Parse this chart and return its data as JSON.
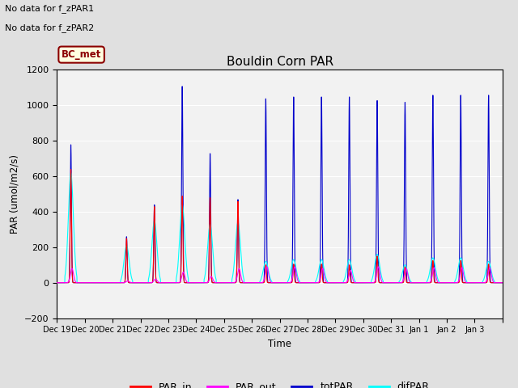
{
  "title": "Bouldin Corn PAR",
  "ylabel": "PAR (umol/m2/s)",
  "xlabel": "Time",
  "ylim": [
    -200,
    1200
  ],
  "yticks": [
    -200,
    0,
    200,
    400,
    600,
    800,
    1000,
    1200
  ],
  "annotation1": "No data for f_zPAR1",
  "annotation2": "No data for f_zPAR2",
  "legend_label": "BC_met",
  "line_colors": {
    "PAR_in": "#ff0000",
    "PAR_out": "#ff00ff",
    "totPAR": "#0000cc",
    "difPAR": "#00ffff"
  },
  "bg_color": "#e0e0e0",
  "plot_bg": "#f2f2f2",
  "n_days": 16,
  "tick_labels": [
    "Dec 19",
    "Dec 20",
    "Dec 21",
    "Dec 22",
    "Dec 23",
    "Dec 24",
    "Dec 25",
    "Dec 26",
    "Dec 27",
    "Dec 28",
    "Dec 29",
    "Dec 30",
    "Dec 31",
    "Jan 1",
    "Jan 2",
    "Jan 3"
  ],
  "peak_totpar": [
    780,
    0,
    260,
    440,
    1110,
    730,
    470,
    1040,
    1050,
    1050,
    1050,
    1030,
    1020,
    1060,
    1060,
    1060
  ],
  "peak_difpar": [
    620,
    0,
    210,
    350,
    440,
    330,
    340,
    120,
    130,
    130,
    130,
    160,
    100,
    140,
    140,
    120
  ],
  "peak_parin": [
    640,
    0,
    250,
    430,
    490,
    480,
    460,
    100,
    105,
    105,
    100,
    150,
    90,
    125,
    125,
    105
  ],
  "peak_parout": [
    80,
    0,
    10,
    20,
    60,
    35,
    80,
    90,
    90,
    80,
    70,
    90,
    80,
    85,
    85,
    85
  ]
}
